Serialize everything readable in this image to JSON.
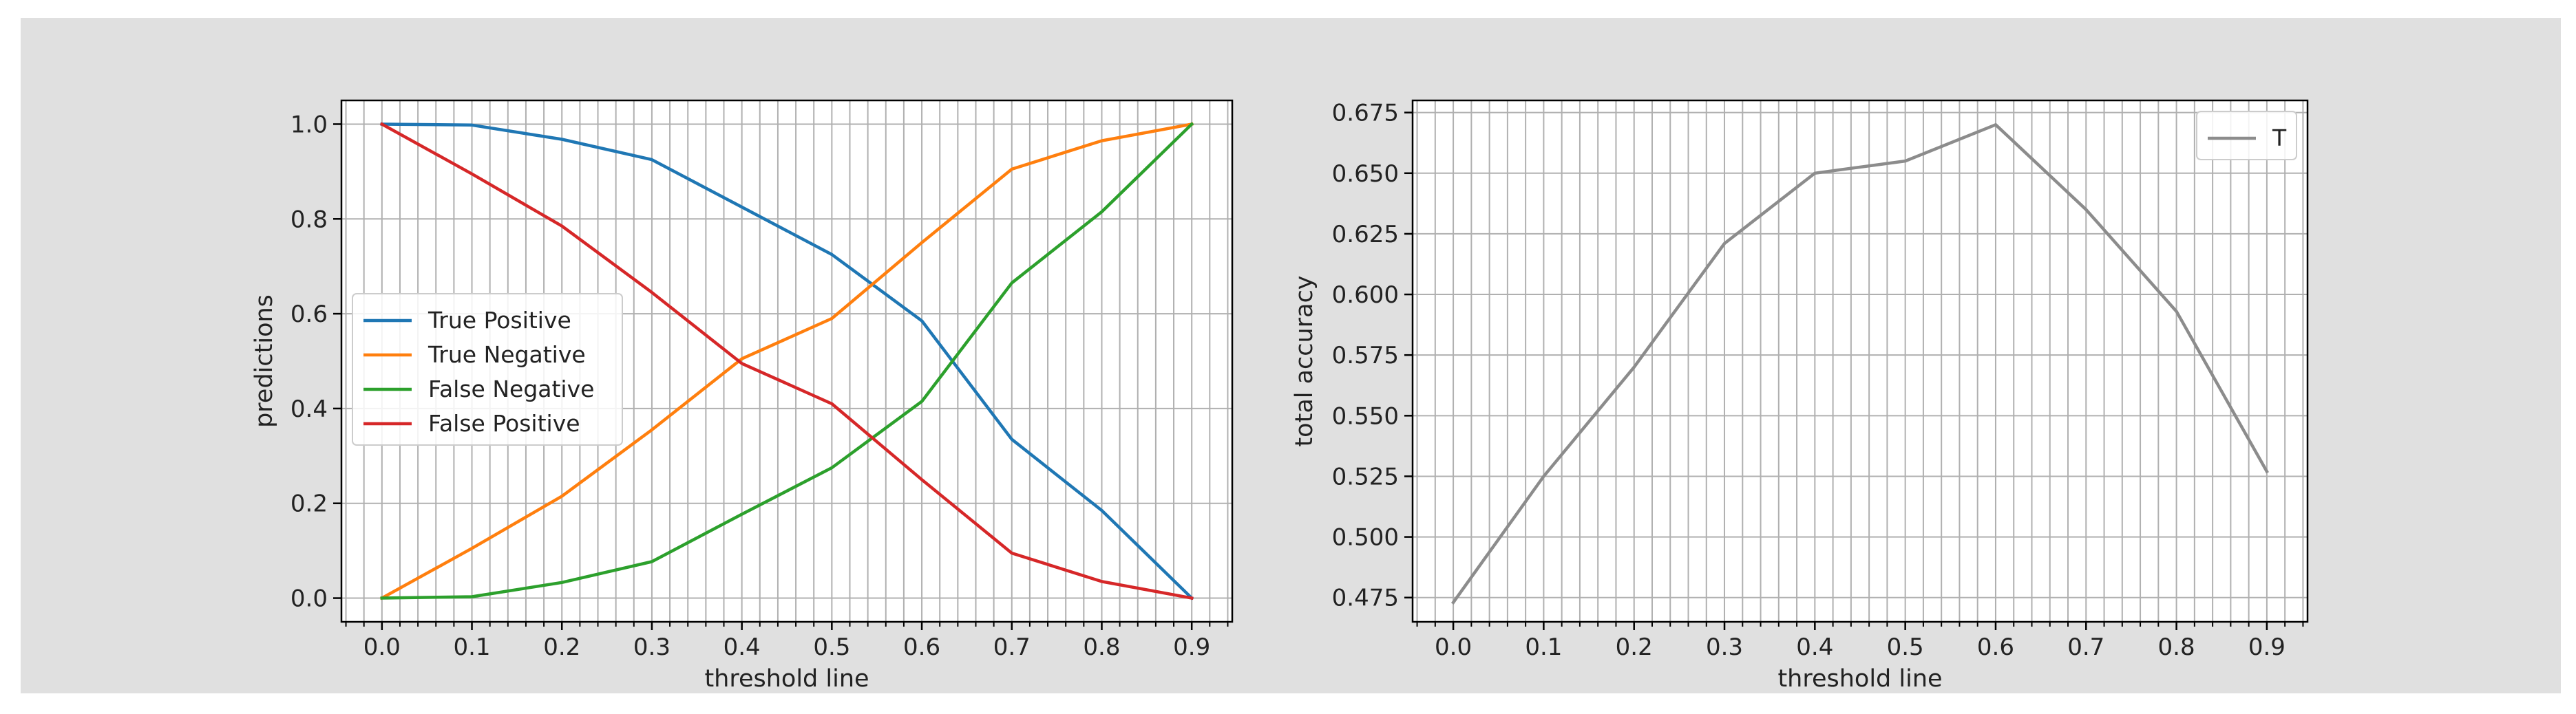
{
  "colors": {
    "background": "#e0e0e0",
    "plot_bg": "#ffffff",
    "grid": "#b0b0b0",
    "axis": "#000000"
  },
  "chart_data": [
    {
      "type": "line",
      "x": [
        0.0,
        0.1,
        0.2,
        0.3,
        0.4,
        0.5,
        0.6,
        0.7,
        0.8,
        0.9
      ],
      "xlabel": "threshold line",
      "ylabel": "predictions",
      "xlim": [
        -0.045,
        0.945
      ],
      "ylim": [
        -0.05,
        1.05
      ],
      "xticks": [
        0.0,
        0.1,
        0.2,
        0.3,
        0.4,
        0.5,
        0.6,
        0.7,
        0.8,
        0.9
      ],
      "xtick_labels": [
        "0.0",
        "0.1",
        "0.2",
        "0.3",
        "0.4",
        "0.5",
        "0.6",
        "0.7",
        "0.8",
        "0.9"
      ],
      "yticks": [
        0.0,
        0.2,
        0.4,
        0.6,
        0.8,
        1.0
      ],
      "ytick_labels": [
        "0.0",
        "0.2",
        "0.4",
        "0.6",
        "0.8",
        "1.0"
      ],
      "grid": true,
      "grid_minor_x_step": 0.02,
      "legend_position": "center-left",
      "series": [
        {
          "name": "True Positive",
          "color": "#1f77b4",
          "values": [
            1.0,
            0.998,
            0.968,
            0.925,
            0.825,
            0.725,
            0.585,
            0.335,
            0.185,
            0.0
          ]
        },
        {
          "name": "True Negative",
          "color": "#ff7f0e",
          "values": [
            0.0,
            0.105,
            0.215,
            0.355,
            0.505,
            0.59,
            0.75,
            0.905,
            0.965,
            1.0
          ]
        },
        {
          "name": "False Negative",
          "color": "#2ca02c",
          "values": [
            0.0,
            0.003,
            0.033,
            0.077,
            0.177,
            0.275,
            0.415,
            0.665,
            0.815,
            1.0
          ]
        },
        {
          "name": "False Positive",
          "color": "#d62728",
          "values": [
            1.0,
            0.895,
            0.785,
            0.645,
            0.495,
            0.41,
            0.25,
            0.095,
            0.035,
            0.0
          ]
        }
      ]
    },
    {
      "type": "line",
      "x": [
        0.0,
        0.1,
        0.2,
        0.3,
        0.4,
        0.5,
        0.6,
        0.7,
        0.8,
        0.9
      ],
      "xlabel": "threshold line",
      "ylabel": "total accuracy",
      "xlim": [
        -0.045,
        0.945
      ],
      "ylim": [
        0.465,
        0.68
      ],
      "xticks": [
        0.0,
        0.1,
        0.2,
        0.3,
        0.4,
        0.5,
        0.6,
        0.7,
        0.8,
        0.9
      ],
      "xtick_labels": [
        "0.0",
        "0.1",
        "0.2",
        "0.3",
        "0.4",
        "0.5",
        "0.6",
        "0.7",
        "0.8",
        "0.9"
      ],
      "yticks": [
        0.475,
        0.5,
        0.525,
        0.55,
        0.575,
        0.6,
        0.625,
        0.65,
        0.675
      ],
      "ytick_labels": [
        "0.475",
        "0.500",
        "0.525",
        "0.550",
        "0.575",
        "0.600",
        "0.625",
        "0.650",
        "0.675"
      ],
      "grid": true,
      "grid_minor_x_step": 0.02,
      "legend_position": "top-right",
      "series": [
        {
          "name": "T",
          "color": "#8c8c8c",
          "values": [
            0.473,
            0.525,
            0.57,
            0.621,
            0.65,
            0.655,
            0.67,
            0.635,
            0.593,
            0.527
          ]
        }
      ]
    }
  ]
}
